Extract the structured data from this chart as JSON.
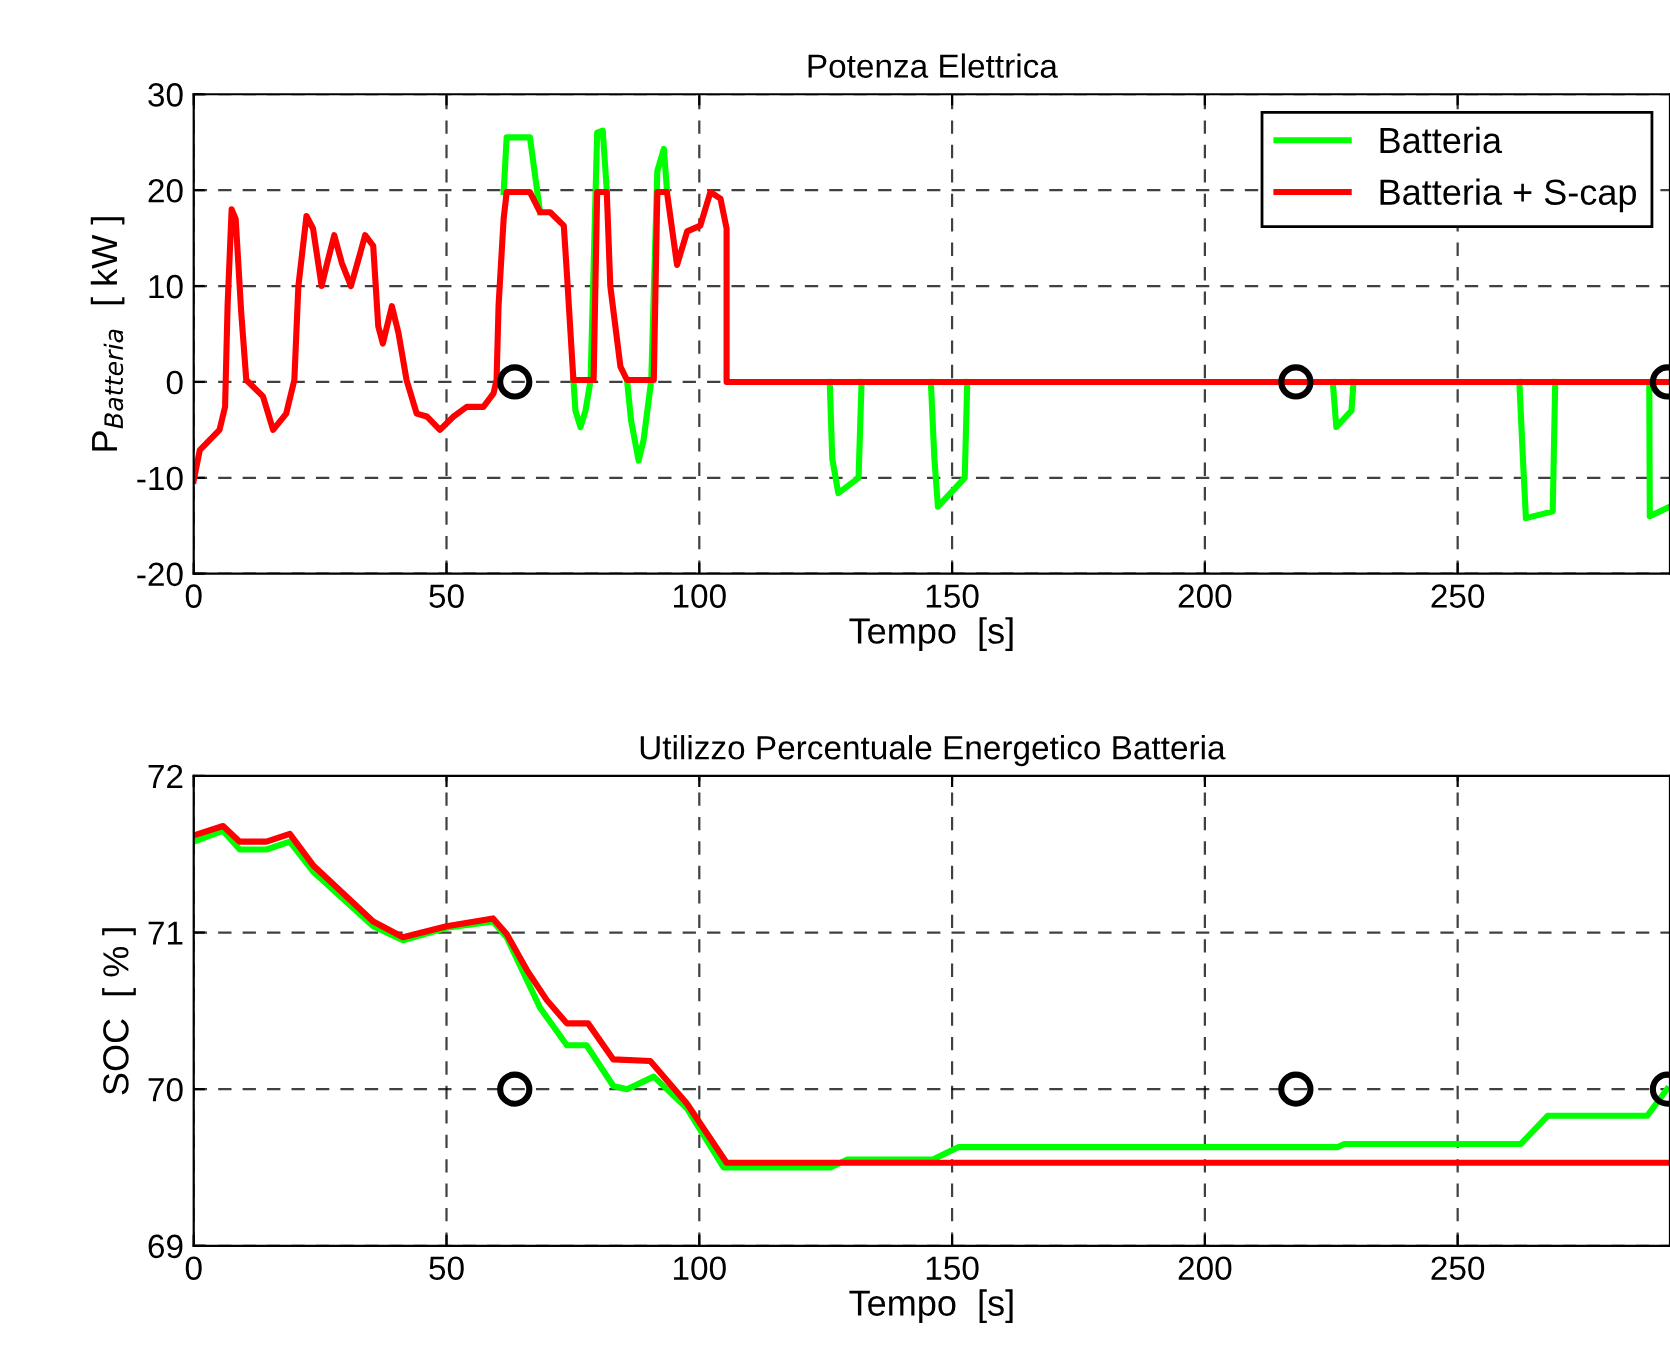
{
  "chart_data": [
    {
      "type": "line",
      "title": "Potenza Elettrica",
      "xlabel": "Tempo  [s]",
      "ylabel": "P$_{Batteria}$  [ kW ]",
      "xlim": [
        0,
        292
      ],
      "xticks": [
        0,
        50,
        100,
        150,
        200,
        250
      ],
      "ylim": [
        -20,
        30
      ],
      "yticks": [
        -20,
        -10,
        0,
        10,
        20,
        30
      ],
      "grid": true,
      "legend": "top right",
      "line_style": "solid",
      "marker": "none",
      "series": [
        {
          "name": "Batteria",
          "color": "#00ff00",
          "x": [
            61.3,
            61.9,
            66.5,
            68.5,
            70,
            75.1,
            75.5,
            76.5,
            77.5,
            78.5,
            79.8,
            80.9,
            81.7,
            83,
            85.7,
            86.5,
            88,
            89,
            90.5,
            91.7,
            93,
            93.6,
            100,
            125.8,
            126.3,
            127.5,
            131.5,
            132.1,
            140,
            145.8,
            146.5,
            147.2,
            152.5,
            153,
            200,
            225.3,
            226,
            229,
            229.4,
            250,
            262.2,
            263,
            263.5,
            268.8,
            269.3,
            280,
            287.9,
            288,
            292
          ],
          "values": [
            19.8,
            25.5,
            25.5,
            17.7,
            null,
            0.2,
            -3,
            -4.7,
            -3,
            0.2,
            26,
            26.2,
            20,
            null,
            0.2,
            -4,
            -8.2,
            -6,
            0.2,
            22,
            24.3,
            20,
            null,
            0,
            -8,
            -11.6,
            -10,
            0,
            null,
            0,
            -8,
            -13,
            -10,
            0,
            null,
            0,
            -4.7,
            -3,
            0,
            null,
            0,
            -9,
            -14.2,
            -13.5,
            0,
            null,
            0,
            -14,
            -13
          ]
        },
        {
          "name": "Batteria + S-cap",
          "color": "#ff0000",
          "x": [
            0,
            1.2,
            5.1,
            6.2,
            6.7,
            7.5,
            8.3,
            9.4,
            10.4,
            13.7,
            15.7,
            18.3,
            19.9,
            20.7,
            22.3,
            23.6,
            25.3,
            26.3,
            27.8,
            29.3,
            31.1,
            32.6,
            33.9,
            35.5,
            36.5,
            37.4,
            39.2,
            40.5,
            42.1,
            44.1,
            46.1,
            48.7,
            51.4,
            54,
            57.3,
            59.3,
            59.9,
            60.3,
            61.3,
            61.9,
            66.5,
            68.5,
            70.5,
            73.2,
            73.8,
            75.1,
            79.1,
            79.8,
            81.7,
            82.4,
            84.4,
            85.7,
            91,
            91.7,
            93.6,
            95.6,
            97.6,
            100.2,
            102.2,
            104.2,
            105.4,
            105.4,
            292
          ],
          "values": [
            -10.3,
            -7.1,
            -5,
            -2.6,
            8,
            18,
            17,
            7.2,
            0.2,
            -1.5,
            -5,
            -3.3,
            0.2,
            10,
            17.3,
            16,
            10,
            12.2,
            15.3,
            12.4,
            10,
            12.8,
            15.3,
            14.2,
            5.8,
            4,
            7.9,
            5.1,
            0.2,
            -3.3,
            -3.6,
            -5,
            -3.6,
            -2.6,
            -2.6,
            -1.2,
            0.2,
            8,
            17,
            19.8,
            19.8,
            17.7,
            17.7,
            16.3,
            11.4,
            0.2,
            0.2,
            19.8,
            19.8,
            10,
            1.6,
            0.2,
            0.2,
            19.8,
            19.8,
            12.2,
            15.7,
            16.3,
            19.8,
            19.1,
            16,
            0,
            0
          ]
        },
        {
          "type": "scatter",
          "color": "#000000",
          "marker": "circle",
          "x": [
            63.5,
            218,
            291.5
          ],
          "values": [
            0,
            0,
            0
          ]
        }
      ]
    },
    {
      "type": "line",
      "title": "Utilizzo Percentuale Energetico Batteria",
      "xlabel": "Tempo  [s]",
      "ylabel": "SOC  [ % ]",
      "xlim": [
        0,
        292
      ],
      "xticks": [
        0,
        50,
        100,
        150,
        200,
        250
      ],
      "ylim": [
        69,
        72
      ],
      "yticks": [
        69,
        70,
        71,
        72
      ],
      "grid": true,
      "line_style": "solid",
      "marker": "none",
      "series": [
        {
          "color": "#00ff00",
          "x": [
            0,
            5.8,
            9.1,
            14.4,
            19,
            23.6,
            35.5,
            41.4,
            50,
            59.2,
            61.9,
            68.5,
            73.8,
            77.7,
            83,
            85.7,
            91,
            97.5,
            104.8,
            125.9,
            129.2,
            146.1,
            151.3,
            226.3,
            227.6,
            262.5,
            267.8,
            287.5,
            291.4
          ],
          "values": [
            71.58,
            71.65,
            71.53,
            71.53,
            71.58,
            71.39,
            71.04,
            70.95,
            71.03,
            71.07,
            70.97,
            70.52,
            70.28,
            70.28,
            70.02,
            70,
            70.08,
            69.88,
            69.5,
            69.5,
            69.55,
            69.55,
            69.63,
            69.63,
            69.65,
            69.65,
            69.83,
            69.83,
            70
          ]
        },
        {
          "color": "#ff0000",
          "x": [
            0,
            5.8,
            9.1,
            14.4,
            19,
            23.6,
            35.5,
            41.4,
            50,
            59.2,
            61.9,
            65.9,
            69.8,
            73.8,
            78,
            83,
            90.3,
            97.5,
            105.4,
            292
          ],
          "values": [
            71.62,
            71.68,
            71.58,
            71.58,
            71.63,
            71.43,
            71.07,
            70.97,
            71.04,
            71.09,
            70.99,
            70.76,
            70.57,
            70.42,
            70.42,
            70.19,
            70.18,
            69.91,
            69.53,
            69.53
          ]
        },
        {
          "type": "scatter",
          "color": "#000000",
          "marker": "circle",
          "x": [
            63.5,
            218,
            291.5
          ],
          "values": [
            70,
            70,
            70
          ]
        }
      ]
    }
  ]
}
